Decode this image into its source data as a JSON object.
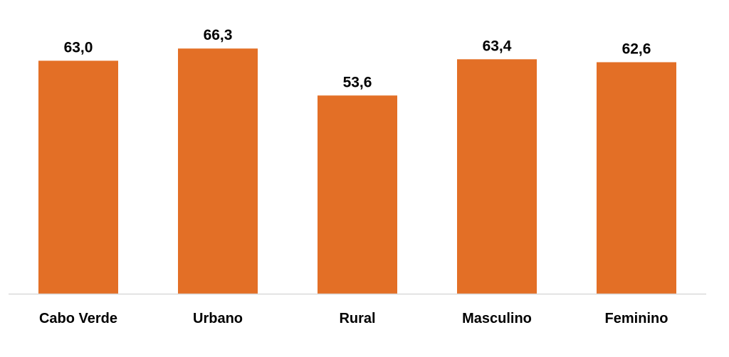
{
  "chart_data": {
    "type": "bar",
    "title": "",
    "xlabel": "",
    "ylabel": "",
    "categories": [
      "Cabo Verde",
      "Urbano",
      "Rural",
      "Masculino",
      "Feminino"
    ],
    "values": [
      63.0,
      66.3,
      53.6,
      63.4,
      62.6
    ],
    "value_labels": [
      "63,0",
      "66,3",
      "53,6",
      "63,4",
      "62,6"
    ],
    "ylim": [
      0,
      70
    ],
    "grid": false,
    "legend": "none",
    "bar_color": "#E36F26",
    "axis_color": "#D9D9D9"
  }
}
